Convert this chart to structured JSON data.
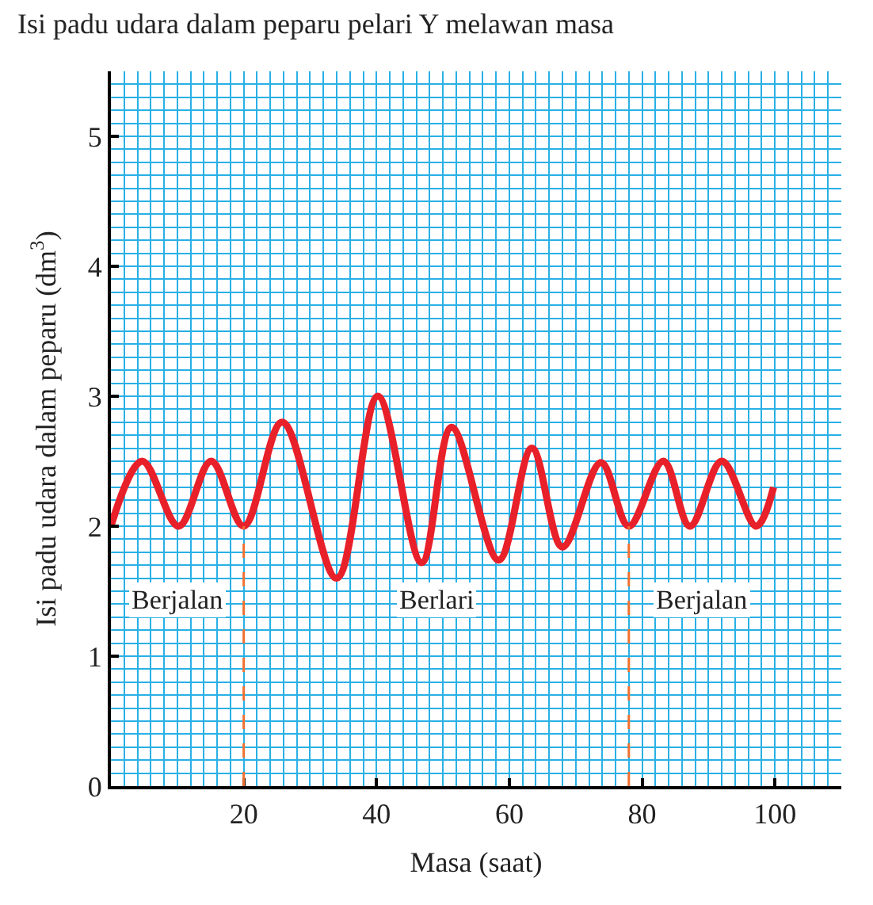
{
  "chart_data": {
    "type": "line",
    "title": "Isi padu udara dalam peparu pelari Y melawan masa",
    "xlabel": "Masa (saat)",
    "ylabel": "Isi padu udara dalam peparu (dm$^{3}$)",
    "x": [
      0,
      4.7,
      10.2,
      15.1,
      20,
      25.8,
      34,
      40.2,
      46.8,
      51.3,
      58.4,
      63.4,
      68,
      73.8,
      78,
      83.2,
      87.2,
      92,
      97.2,
      99.8
    ],
    "series": [
      {
        "color": "#e8202a",
        "values": [
          2.0,
          2.5,
          2.0,
          2.5,
          2.0,
          2.8,
          1.6,
          3.0,
          1.72,
          2.76,
          1.74,
          2.6,
          1.84,
          2.49,
          2.0,
          2.5,
          2.0,
          2.5,
          2.0,
          2.3
        ]
      }
    ],
    "xlim": [
      0,
      110
    ],
    "ylim": [
      0,
      5.5
    ],
    "xticks": [
      20,
      40,
      60,
      80,
      100
    ],
    "yticks": [
      0,
      1,
      2,
      3,
      4,
      5
    ],
    "grid": true,
    "marker": "none",
    "line_style": "solid",
    "ref_lines": [
      {
        "axis": "x",
        "value": 20,
        "color": "#f07030",
        "line_style": "dashed"
      },
      {
        "axis": "x",
        "value": 78,
        "color": "#f07030",
        "line_style": "dashed"
      }
    ],
    "annotations": [
      "Berjalan",
      "Berlari",
      "Berjalan"
    ]
  }
}
